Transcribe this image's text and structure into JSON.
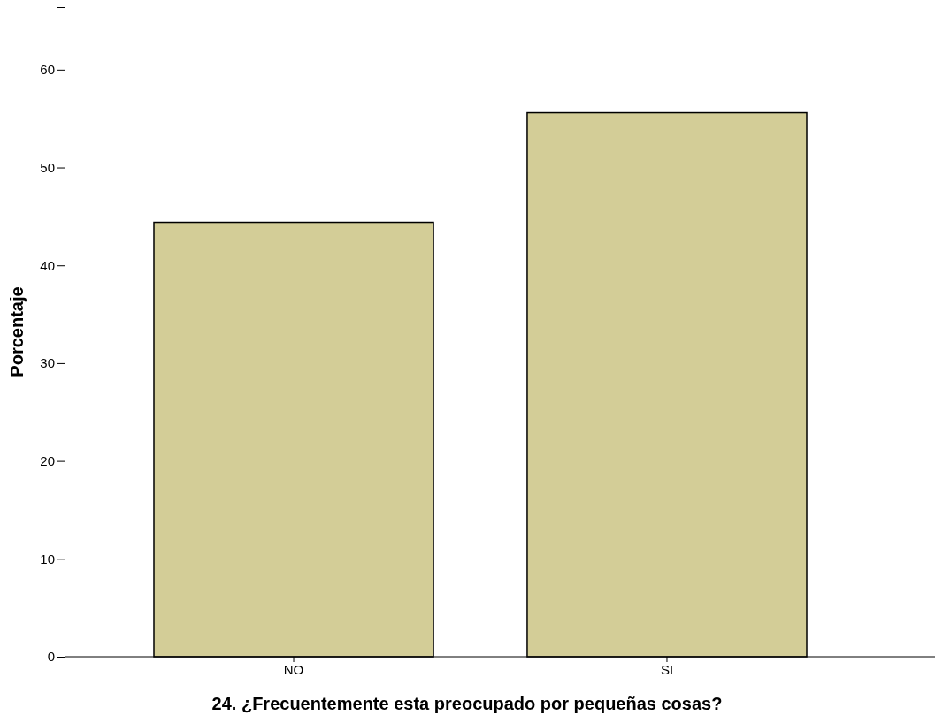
{
  "chart_data": {
    "type": "bar",
    "xlabel": "24. ¿Frecuentemente esta preocupado por pequeñas cosas?",
    "ylabel": "Porcentaje",
    "categories": [
      "NO",
      "SI"
    ],
    "values": [
      44.4,
      55.6
    ],
    "color": "#d3cd97",
    "ylim": [
      0,
      66.4
    ],
    "yticks": [
      0,
      10,
      20,
      30,
      40,
      50,
      60
    ]
  }
}
